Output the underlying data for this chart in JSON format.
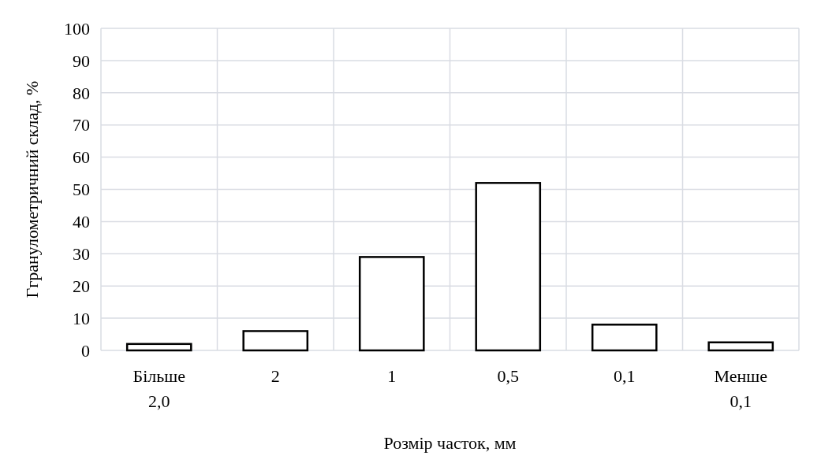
{
  "chart_data": {
    "type": "bar",
    "categories": [
      "Більше 2,0",
      "2",
      "1",
      "0,5",
      "0,1",
      "Менше 0,1"
    ],
    "values": [
      2,
      6,
      29,
      52,
      8,
      2.5
    ],
    "color": "#ffffff",
    "xlabel": "Розмір часток, мм",
    "ylabel": "Ггранулометричний склад, %",
    "ylim": [
      0,
      100
    ],
    "yticks": [
      0,
      10,
      20,
      30,
      40,
      50,
      60,
      70,
      80,
      90,
      100
    ],
    "grid": true
  }
}
